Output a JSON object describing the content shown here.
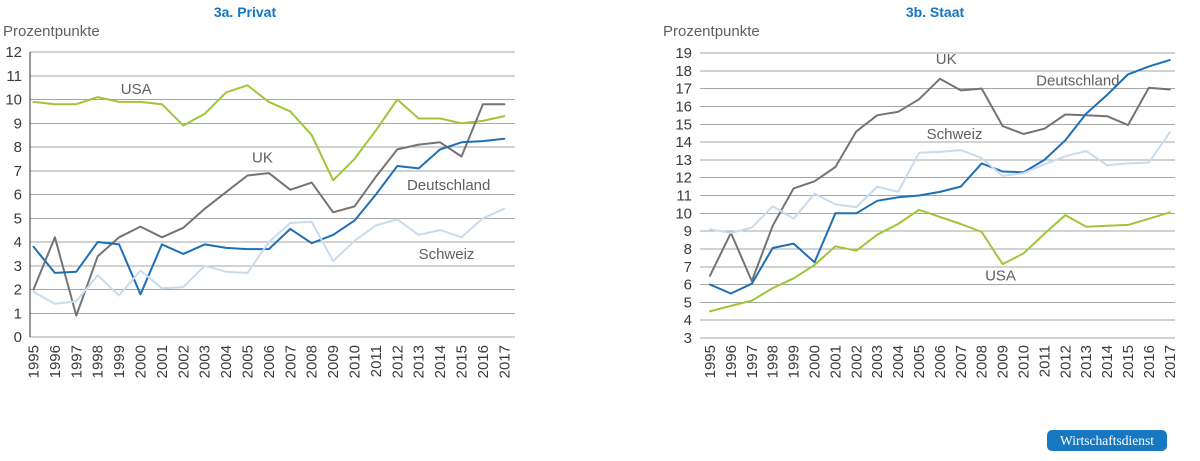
{
  "colors": {
    "background": "#ffffff",
    "title_blue": "#1276c5",
    "axis_text": "#3a3a3a",
    "muted_text": "#606060",
    "grid": "#a6a6a6",
    "axis_line": "#333333"
  },
  "badge": {
    "label": "Wirtschaftsdienst",
    "bg": "#1777c0",
    "text": "#ffffff"
  },
  "chart_data": [
    {
      "type": "line",
      "title": "3a. Privat",
      "ylabel": "Prozentpunkte",
      "ylim": [
        0,
        12
      ],
      "yticks": [
        0,
        1,
        2,
        3,
        4,
        5,
        6,
        7,
        8,
        9,
        10,
        11,
        12
      ],
      "grid": true,
      "legend_position": "inline-labels",
      "x": [
        1995,
        1996,
        1997,
        1998,
        1999,
        2000,
        2001,
        2002,
        2003,
        2004,
        2005,
        2006,
        2007,
        2008,
        2009,
        2010,
        2011,
        2012,
        2013,
        2014,
        2015,
        2016,
        2017
      ],
      "series": [
        {
          "name": "USA",
          "color": "#a2c437",
          "values": [
            9.9,
            9.8,
            9.8,
            10.1,
            9.9,
            9.9,
            9.8,
            8.9,
            9.4,
            10.3,
            10.6,
            9.9,
            9.5,
            8.5,
            6.6,
            7.5,
            8.7,
            10.0,
            9.2,
            9.2,
            9.0,
            9.1,
            9.3
          ],
          "label": {
            "x": 1999.8,
            "y": 10.45
          }
        },
        {
          "name": "UK",
          "color": "#747474",
          "values": [
            2.0,
            4.2,
            0.9,
            3.4,
            4.2,
            4.65,
            4.2,
            4.6,
            5.4,
            6.1,
            6.8,
            6.9,
            6.2,
            6.5,
            5.25,
            5.5,
            6.75,
            7.9,
            8.1,
            8.2,
            7.6,
            9.8,
            9.8
          ],
          "label": {
            "x": 2005.7,
            "y": 7.55
          }
        },
        {
          "name": "Deutschland",
          "color": "#1e6fb5",
          "values": [
            3.8,
            2.7,
            2.75,
            4.0,
            3.9,
            1.8,
            3.9,
            3.5,
            3.9,
            3.75,
            3.7,
            3.7,
            4.55,
            3.95,
            4.3,
            4.9,
            6.0,
            7.2,
            7.1,
            7.9,
            8.2,
            8.25,
            8.35
          ],
          "label": {
            "x": 2014.4,
            "y": 6.4
          }
        },
        {
          "name": "Schweiz",
          "color": "#c9dcee",
          "values": [
            1.9,
            1.4,
            1.5,
            2.6,
            1.75,
            2.8,
            2.05,
            2.1,
            3.0,
            2.75,
            2.7,
            4.0,
            4.8,
            4.85,
            3.2,
            4.05,
            4.7,
            4.95,
            4.3,
            4.5,
            4.2,
            5.0,
            5.4
          ],
          "label": {
            "x": 2014.3,
            "y": 3.5
          }
        }
      ]
    },
    {
      "type": "line",
      "title": "3b. Staat",
      "ylabel": "Prozentpunkte",
      "ylim": [
        3,
        19
      ],
      "yticks": [
        3,
        4,
        5,
        6,
        7,
        8,
        9,
        10,
        11,
        12,
        13,
        14,
        15,
        16,
        17,
        18,
        19
      ],
      "grid": true,
      "legend_position": "inline-labels",
      "x": [
        1995,
        1996,
        1997,
        1998,
        1999,
        2000,
        2001,
        2002,
        2003,
        2004,
        2005,
        2006,
        2007,
        2008,
        2009,
        2010,
        2011,
        2012,
        2013,
        2014,
        2015,
        2016,
        2017
      ],
      "series": [
        {
          "name": "UK",
          "color": "#747474",
          "values": [
            6.5,
            8.9,
            6.2,
            9.3,
            11.4,
            11.8,
            12.6,
            14.6,
            15.5,
            15.7,
            16.4,
            17.55,
            16.9,
            17.0,
            14.9,
            14.45,
            14.75,
            15.55,
            15.5,
            15.45,
            14.95,
            17.05,
            16.95
          ],
          "label": {
            "x": 2006.3,
            "y": 18.65
          }
        },
        {
          "name": "Deutschland",
          "color": "#1e6fb5",
          "values": [
            6.0,
            5.5,
            6.05,
            8.05,
            8.3,
            7.25,
            10.0,
            10.0,
            10.7,
            10.9,
            11.0,
            11.2,
            11.5,
            12.8,
            12.35,
            12.3,
            13.0,
            14.1,
            15.6,
            16.65,
            17.8,
            18.25,
            18.6
          ],
          "label": {
            "x": 2012.6,
            "y": 17.45
          }
        },
        {
          "name": "Schweiz",
          "color": "#c9dcee",
          "values": [
            9.1,
            8.9,
            9.2,
            10.4,
            9.7,
            11.1,
            10.5,
            10.35,
            11.5,
            11.2,
            13.4,
            13.45,
            13.55,
            13.1,
            12.1,
            12.25,
            12.75,
            13.2,
            13.5,
            12.7,
            12.8,
            12.85,
            14.55
          ],
          "label": {
            "x": 2006.7,
            "y": 14.45
          }
        },
        {
          "name": "USA",
          "color": "#a2c437",
          "values": [
            4.5,
            4.8,
            5.1,
            5.8,
            6.35,
            7.1,
            8.15,
            7.9,
            8.8,
            9.4,
            10.2,
            9.8,
            9.4,
            8.95,
            7.15,
            7.75,
            8.85,
            9.9,
            9.25,
            9.3,
            9.35,
            9.7,
            10.05
          ],
          "label": {
            "x": 2008.9,
            "y": 6.5
          }
        }
      ]
    }
  ]
}
